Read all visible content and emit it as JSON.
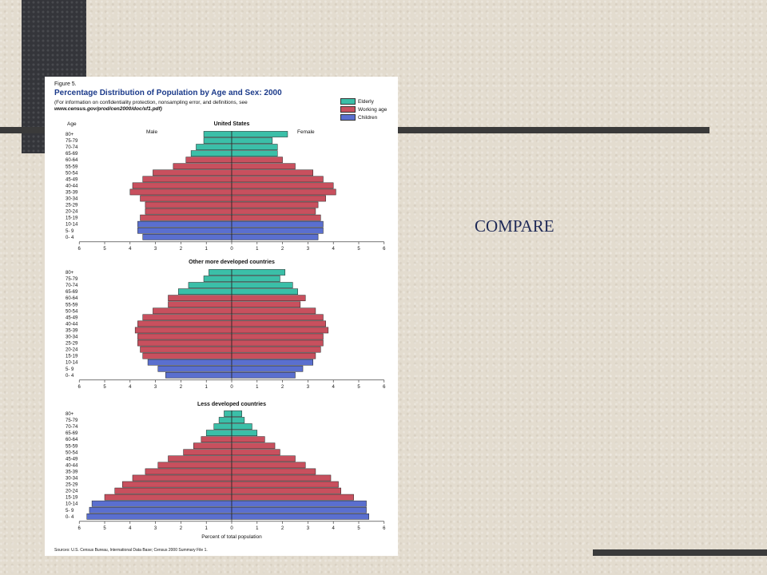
{
  "page": {
    "heading": "COMPARE"
  },
  "figure": {
    "label": "Figure 5.",
    "title": "Percentage Distribution of Population by Age and Sex: 2000",
    "note1": "(For information on confidentiality protection, nonsampling error, and definitions, see",
    "note2": "www.census.gov/prod/cen2000/doc/sf1.pdf)",
    "legend": [
      {
        "label": "Elderly",
        "color": "#3bbfa8"
      },
      {
        "label": "Working age",
        "color": "#c8505e"
      },
      {
        "label": "Children",
        "color": "#5a6fcf"
      }
    ],
    "age_axis_title": "Age",
    "male_label": "Male",
    "female_label": "Female",
    "xlabel": "Percent of total population",
    "source": "Sources: U.S. Census Bureau, International Data Base; Census 2000 Summary File 1."
  },
  "chart_data": [
    {
      "type": "bar",
      "title": "United States",
      "orientation": "horizontal-pyramid",
      "categories": [
        "80+",
        "75-79",
        "70-74",
        "65-69",
        "60-64",
        "55-59",
        "50-54",
        "45-49",
        "40-44",
        "35-39",
        "30-34",
        "25-29",
        "20-24",
        "15-19",
        "10-14",
        "5- 9",
        "0- 4"
      ],
      "groups": [
        "Elderly",
        "Elderly",
        "Elderly",
        "Elderly",
        "Working age",
        "Working age",
        "Working age",
        "Working age",
        "Working age",
        "Working age",
        "Working age",
        "Working age",
        "Working age",
        "Working age",
        "Children",
        "Children",
        "Children"
      ],
      "series": [
        {
          "name": "Male",
          "values": [
            1.1,
            1.1,
            1.4,
            1.6,
            1.8,
            2.3,
            3.1,
            3.5,
            3.9,
            4.0,
            3.6,
            3.4,
            3.4,
            3.6,
            3.7,
            3.7,
            3.5
          ]
        },
        {
          "name": "Female",
          "values": [
            2.2,
            1.6,
            1.8,
            1.8,
            2.0,
            2.5,
            3.2,
            3.6,
            4.0,
            4.1,
            3.7,
            3.4,
            3.3,
            3.5,
            3.6,
            3.6,
            3.4
          ]
        }
      ],
      "xticks": [
        6,
        5,
        4,
        3,
        2,
        1,
        0,
        1,
        2,
        3,
        4,
        5,
        6
      ],
      "xlim": [
        0,
        6
      ]
    },
    {
      "type": "bar",
      "title": "Other more developed countries",
      "orientation": "horizontal-pyramid",
      "categories": [
        "80+",
        "75-79",
        "70-74",
        "65-69",
        "60-64",
        "55-59",
        "50-54",
        "45-49",
        "40-44",
        "35-39",
        "30-34",
        "25-29",
        "20-24",
        "15-19",
        "10-14",
        "5- 9",
        "0- 4"
      ],
      "groups": [
        "Elderly",
        "Elderly",
        "Elderly",
        "Elderly",
        "Working age",
        "Working age",
        "Working age",
        "Working age",
        "Working age",
        "Working age",
        "Working age",
        "Working age",
        "Working age",
        "Working age",
        "Children",
        "Children",
        "Children"
      ],
      "series": [
        {
          "name": "Male",
          "values": [
            0.9,
            1.1,
            1.7,
            2.1,
            2.5,
            2.5,
            3.1,
            3.5,
            3.7,
            3.8,
            3.7,
            3.7,
            3.6,
            3.5,
            3.3,
            2.9,
            2.6
          ]
        },
        {
          "name": "Female",
          "values": [
            2.1,
            1.9,
            2.4,
            2.6,
            2.9,
            2.7,
            3.3,
            3.6,
            3.7,
            3.8,
            3.6,
            3.6,
            3.5,
            3.3,
            3.2,
            2.8,
            2.5
          ]
        }
      ],
      "xticks": [
        6,
        5,
        4,
        3,
        2,
        1,
        0,
        1,
        2,
        3,
        4,
        5,
        6
      ],
      "xlim": [
        0,
        6
      ]
    },
    {
      "type": "bar",
      "title": "Less developed countries",
      "orientation": "horizontal-pyramid",
      "categories": [
        "80+",
        "75-79",
        "70-74",
        "65-69",
        "60-64",
        "55-59",
        "50-54",
        "45-49",
        "40-44",
        "35-39",
        "30-34",
        "25-29",
        "20-24",
        "15-19",
        "10-14",
        "5- 9",
        "0- 4"
      ],
      "groups": [
        "Elderly",
        "Elderly",
        "Elderly",
        "Elderly",
        "Working age",
        "Working age",
        "Working age",
        "Working age",
        "Working age",
        "Working age",
        "Working age",
        "Working age",
        "Working age",
        "Working age",
        "Children",
        "Children",
        "Children"
      ],
      "series": [
        {
          "name": "Male",
          "values": [
            0.3,
            0.5,
            0.7,
            1.0,
            1.2,
            1.5,
            1.9,
            2.5,
            2.9,
            3.4,
            3.9,
            4.3,
            4.6,
            5.0,
            5.5,
            5.6,
            5.7
          ]
        },
        {
          "name": "Female",
          "values": [
            0.4,
            0.5,
            0.8,
            1.0,
            1.3,
            1.7,
            1.9,
            2.5,
            2.9,
            3.3,
            3.9,
            4.2,
            4.3,
            4.8,
            5.3,
            5.3,
            5.4
          ]
        }
      ],
      "xticks": [
        6,
        5,
        4,
        3,
        2,
        1,
        0,
        1,
        2,
        3,
        4,
        5,
        6
      ],
      "xlim": [
        0,
        6
      ]
    }
  ]
}
